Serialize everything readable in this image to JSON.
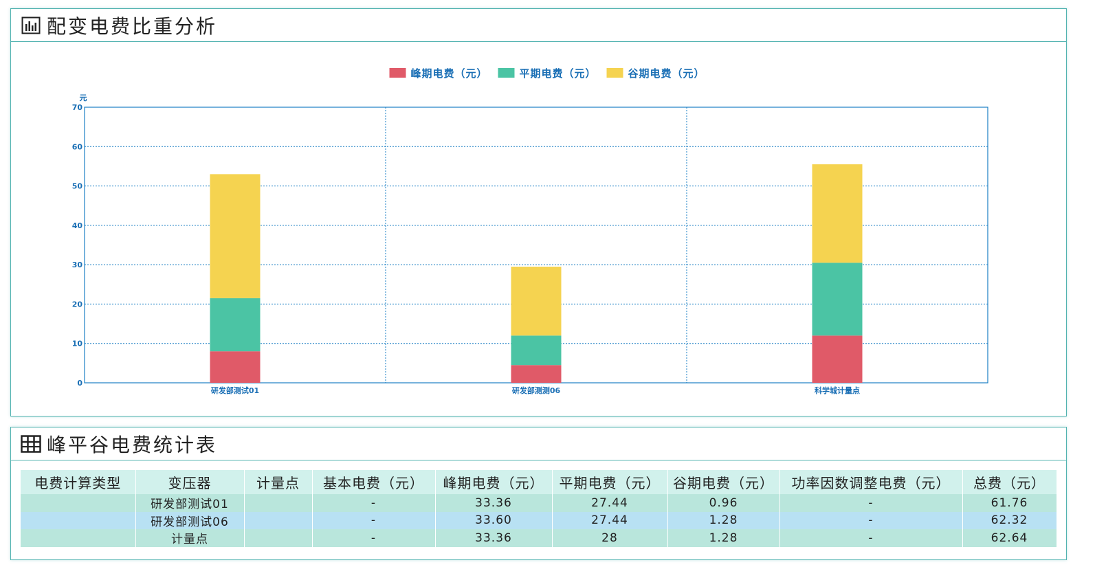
{
  "chart_panel": {
    "title": "配变电费比重分析",
    "icon": "bar-chart-icon"
  },
  "table_panel": {
    "title": "峰平谷电费统计表",
    "icon": "table-grid-icon",
    "columns": [
      "电费计算类型",
      "变压器",
      "计量点",
      "基本电费（元）",
      "峰期电费（元）",
      "平期电费（元）",
      "谷期电费（元）",
      "功率因数调整电费（元）",
      "总费（元）"
    ],
    "rows": [
      [
        "",
        "研发部测试01",
        "",
        "-",
        "33.36",
        "27.44",
        "0.96",
        "-",
        "61.76"
      ],
      [
        "",
        "研发部测试06",
        "",
        "-",
        "33.60",
        "27.44",
        "1.28",
        "-",
        "62.32"
      ],
      [
        "",
        "计量点",
        "",
        "-",
        "33.36",
        "28",
        "1.28",
        "-",
        "62.64"
      ]
    ]
  },
  "chart_data": {
    "type": "bar",
    "stacked": true,
    "categories": [
      "研发部测试01",
      "研发部测测06",
      "科学城计量点"
    ],
    "series": [
      {
        "name": "峰期电费（元）",
        "color": "#e05a68",
        "values": [
          8,
          4.5,
          12
        ]
      },
      {
        "name": "平期电费（元）",
        "color": "#4bc4a4",
        "values": [
          13.5,
          7.5,
          18.5
        ]
      },
      {
        "name": "谷期电费（元）",
        "color": "#f5d350",
        "values": [
          31.5,
          17.5,
          25
        ]
      }
    ],
    "ylabel": "元",
    "ylim": [
      0,
      70
    ],
    "yticks": [
      0,
      10,
      20,
      30,
      40,
      50,
      60,
      70
    ],
    "legend": "top-center",
    "grid": true,
    "axis_color": "#1a7fc4",
    "label_color": "#1a6fb5"
  }
}
